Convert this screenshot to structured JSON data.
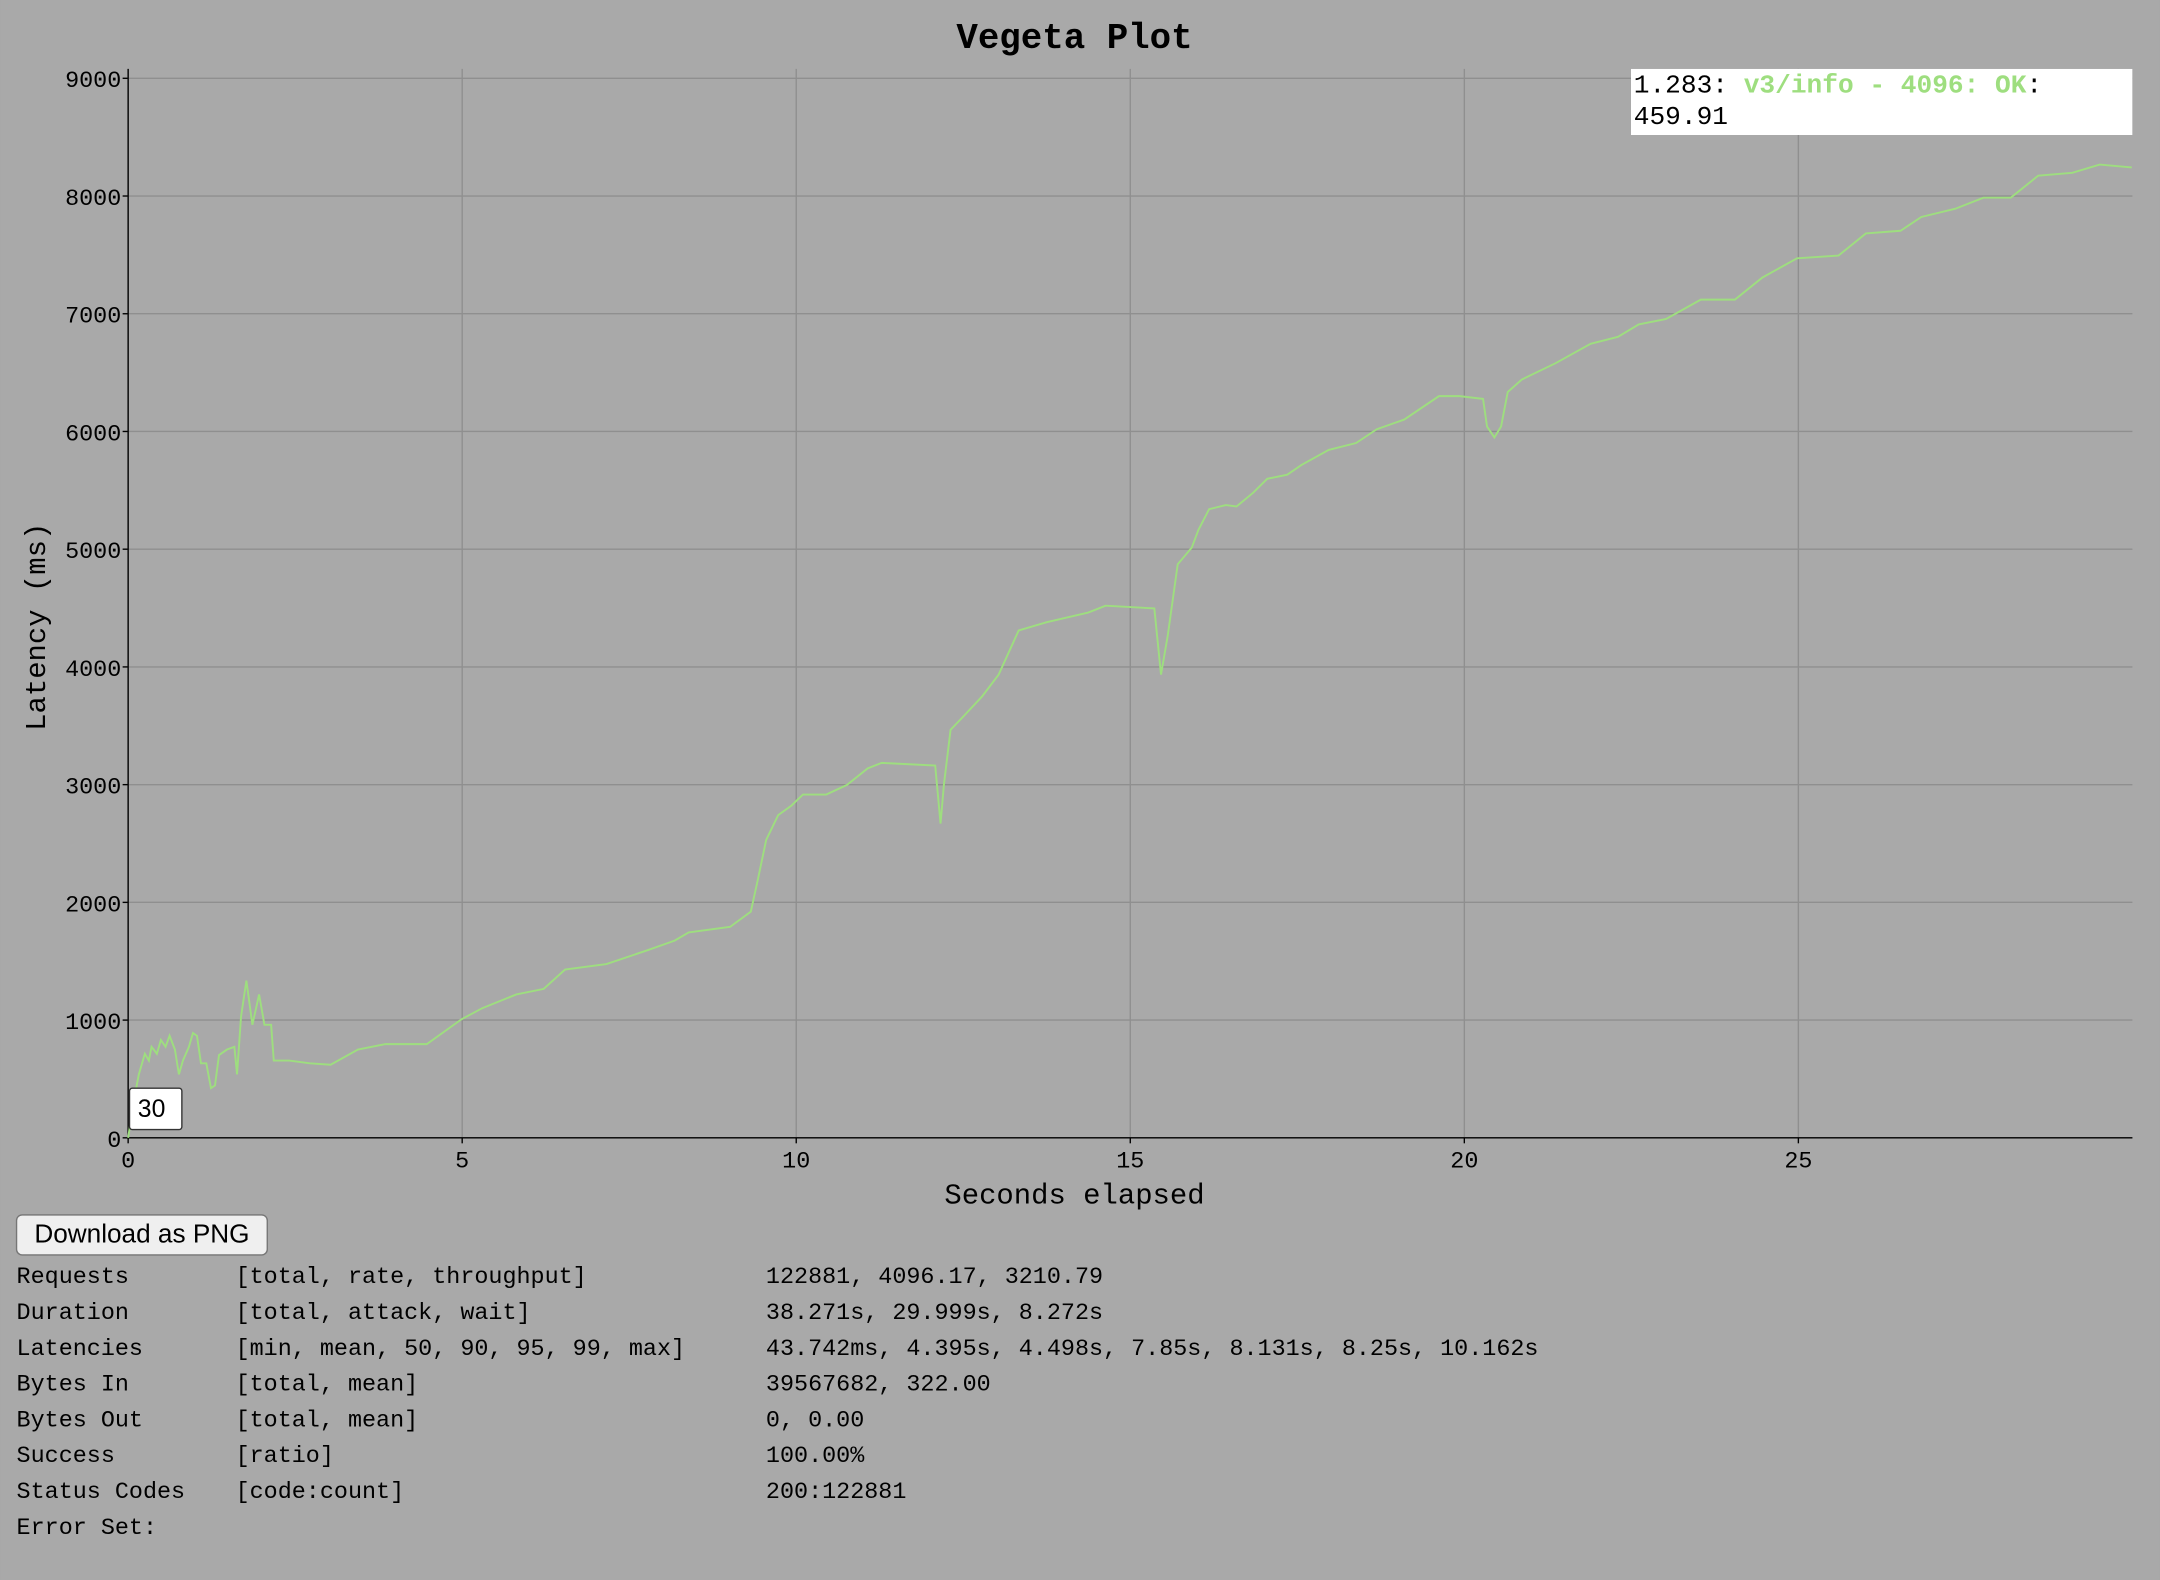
{
  "chart_data": {
    "type": "line",
    "title": "Vegeta Plot",
    "x_label": "Seconds elapsed",
    "y_label": "Latency (ms)",
    "x": [
      0,
      0.08,
      0.16,
      0.25,
      0.31,
      0.35,
      0.43,
      0.49,
      0.56,
      0.62,
      0.7,
      0.76,
      0.82,
      0.91,
      0.97,
      1.03,
      1.09,
      1.17,
      1.24,
      1.3,
      1.36,
      1.48,
      1.59,
      1.63,
      1.69,
      1.77,
      1.86,
      1.96,
      2.04,
      2.14,
      2.18,
      2.41,
      2.72,
      3.03,
      3.44,
      3.85,
      4.47,
      4.99,
      5.3,
      5.81,
      6.22,
      6.54,
      7.16,
      7.77,
      8.18,
      8.39,
      9.01,
      9.32,
      9.42,
      9.55,
      9.73,
      9.93,
      10.1,
      10.45,
      10.76,
      11.07,
      11.28,
      12.08,
      12.16,
      12.21,
      12.31,
      12.51,
      12.78,
      13.03,
      13.33,
      13.75,
      14.37,
      14.63,
      15.36,
      15.46,
      15.56,
      15.71,
      15.92,
      16.02,
      16.18,
      16.43,
      16.59,
      16.84,
      17.05,
      17.35,
      17.56,
      17.97,
      18.38,
      18.69,
      19.1,
      19.62,
      19.93,
      20.28,
      20.34,
      20.45,
      20.55,
      20.65,
      20.86,
      21.37,
      21.89,
      22.3,
      22.61,
      23.02,
      23.54,
      24.05,
      24.46,
      24.98,
      25.6,
      26.01,
      26.53,
      26.84,
      27.35,
      27.77,
      28.18,
      28.59,
      29.1,
      29.51,
      29.99
    ],
    "series": [
      {
        "name": "v3/info - 4096: OK",
        "color": "#9ede7f",
        "values": [
          0,
          304,
          539,
          714,
          656,
          773,
          714,
          831,
          773,
          867,
          750,
          539,
          656,
          773,
          890,
          867,
          633,
          633,
          422,
          445,
          703,
          750,
          773,
          539,
          1031,
          1335,
          960,
          1218,
          960,
          960,
          656,
          656,
          633,
          621,
          750,
          796,
          796,
          1007,
          1101,
          1218,
          1265,
          1429,
          1476,
          1593,
          1675,
          1745,
          1792,
          1921,
          2179,
          2530,
          2741,
          2823,
          2916,
          2916,
          2998,
          3138,
          3185,
          3162,
          2670,
          2998,
          3466,
          3584,
          3748,
          3935,
          4310,
          4380,
          4462,
          4520,
          4497,
          3935,
          4263,
          4872,
          5013,
          5164,
          5340,
          5375,
          5363,
          5480,
          5598,
          5633,
          5715,
          5843,
          5902,
          6019,
          6101,
          6300,
          6300,
          6277,
          6042,
          5949,
          6042,
          6335,
          6441,
          6581,
          6745,
          6804,
          6909,
          6956,
          7120,
          7120,
          7307,
          7471,
          7494,
          7682,
          7705,
          7822,
          7892,
          7986,
          7986,
          8173,
          8197,
          8267,
          8243
        ]
      }
    ],
    "xlim": [
      0,
      30
    ],
    "ylim": [
      0,
      9080
    ],
    "xticks": [
      0,
      5,
      10,
      15,
      20,
      25
    ],
    "yticks": [
      0,
      1000,
      2000,
      3000,
      4000,
      5000,
      6000,
      7000,
      8000,
      9000
    ],
    "grid": true,
    "legend": {
      "x": "1.283:",
      "series": "v3/info - 4096: OK",
      "value": ": 459.91"
    },
    "roll_period": 30
  },
  "button": "Download as PNG",
  "report": [
    [
      "Requests",
      "[total, rate, throughput]",
      "122881, 4096.17, 3210.79"
    ],
    [
      "Duration",
      "[total, attack, wait]",
      "38.271s, 29.999s, 8.272s"
    ],
    [
      "Latencies",
      "[min, mean, 50, 90, 95, 99, max]",
      "43.742ms, 4.395s, 4.498s, 7.85s, 8.131s, 8.25s, 10.162s"
    ],
    [
      "Bytes In",
      "[total, mean]",
      "39567682, 322.00"
    ],
    [
      "Bytes Out",
      "[total, mean]",
      "0, 0.00"
    ],
    [
      "Success",
      "[ratio]",
      "100.00%"
    ],
    [
      "Status Codes",
      "[code:count]",
      "200:122881"
    ],
    [
      "Error Set:"
    ]
  ]
}
